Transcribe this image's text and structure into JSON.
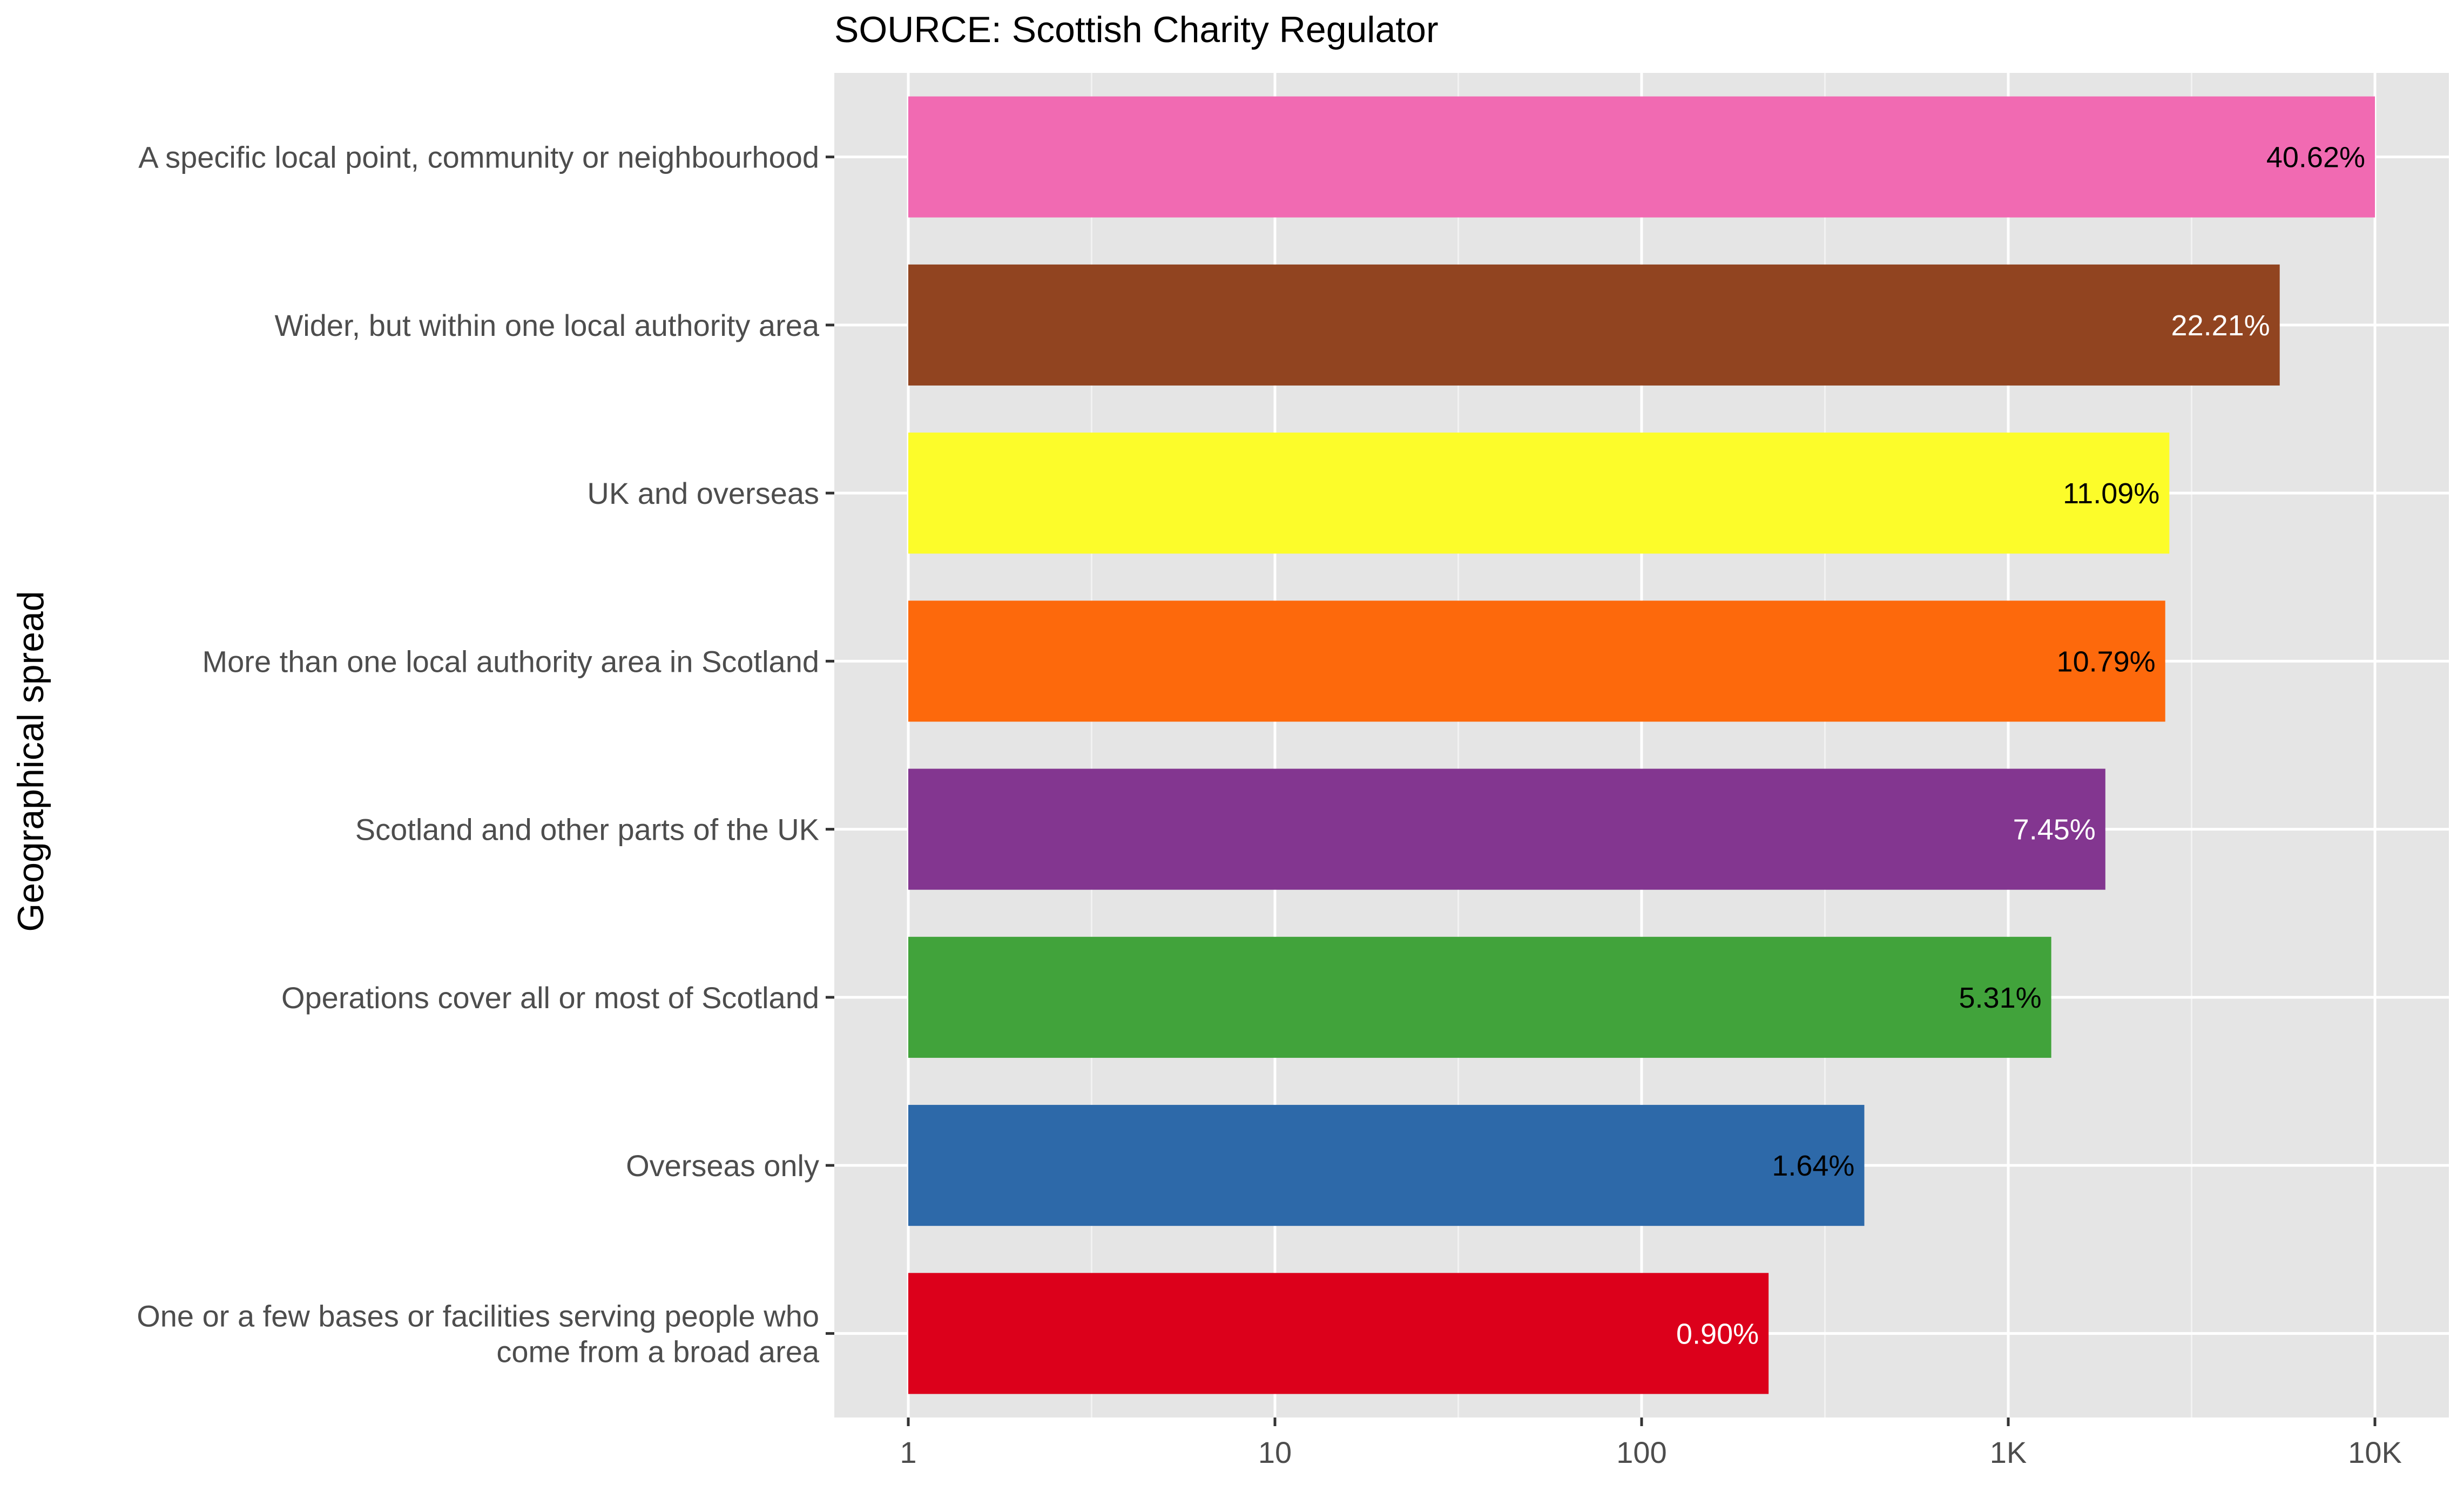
{
  "chart_data": {
    "type": "bar",
    "orientation": "horizontal",
    "title": "SOURCE: Scottish Charity Regulator",
    "xlabel": "",
    "ylabel": "Geographical spread",
    "x_scale": "log10",
    "xlim": [
      1,
      10000
    ],
    "x_ticks": [
      {
        "value": 1,
        "label": "1"
      },
      {
        "value": 10,
        "label": "10"
      },
      {
        "value": 100,
        "label": "100"
      },
      {
        "value": 1000,
        "label": "1K"
      },
      {
        "value": 10000,
        "label": "10K"
      }
    ],
    "grid": true,
    "legend": "none",
    "bars": [
      {
        "category": "A specific local point, community or neighbourhood",
        "value": 10000,
        "label": "40.62%",
        "color": "#F16AB2",
        "label_color": "#000000"
      },
      {
        "category": "Wider, but within one local authority area",
        "value": 5500,
        "label": "22.21%",
        "color": "#914420",
        "label_color": "#FFFFFF"
      },
      {
        "category": "UK and overseas",
        "value": 2750,
        "label": "11.09%",
        "color": "#FCFC2A",
        "label_color": "#000000"
      },
      {
        "category": "More than one local authority area in Scotland",
        "value": 2680,
        "label": "10.79%",
        "color": "#FD690C",
        "label_color": "#000000"
      },
      {
        "category": "Scotland and other parts of the UK",
        "value": 1840,
        "label": "7.45%",
        "color": "#833690",
        "label_color": "#FFFFFF"
      },
      {
        "category": "Operations cover all or most of Scotland",
        "value": 1310,
        "label": "5.31%",
        "color": "#41A33B",
        "label_color": "#000000"
      },
      {
        "category": "Overseas only",
        "value": 405,
        "label": "1.64%",
        "color": "#2D69A9",
        "label_color": "#000000"
      },
      {
        "category": "One or a few bases or facilities serving people who\ncome from a broad area",
        "value": 222,
        "label": "0.90%",
        "color": "#DC001B",
        "label_color": "#FFFFFF"
      }
    ]
  }
}
